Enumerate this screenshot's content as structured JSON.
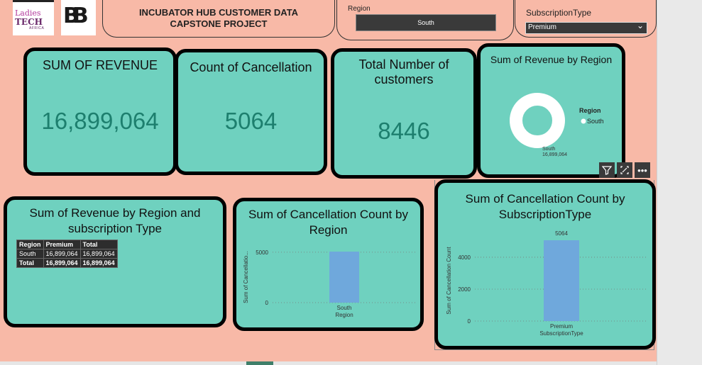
{
  "logos": {
    "ladies_line1": "Ladies",
    "ladies_line2": "TECH",
    "ladies_line3": "AFRICA",
    "brand_mark": "BB"
  },
  "header": {
    "title": "INCUBATOR HUB CUSTOMER DATA CAPSTONE PROJECT"
  },
  "slicers": {
    "region": {
      "label": "Region",
      "value": "South"
    },
    "subscription": {
      "label": "SubscriptionType",
      "value": "Premium"
    }
  },
  "kpis": {
    "revenue": {
      "title": "SUM OF REVENUE",
      "value": "16,899,064"
    },
    "cancellation": {
      "title": "Count of Cancellation",
      "value": "5064"
    },
    "customers": {
      "title": "Total Number of customers",
      "value": "8446"
    }
  },
  "donut": {
    "title": "Sum of Revenue by Region",
    "legend_title": "Region",
    "legend_item": "South",
    "label_region": "South",
    "label_value": "16,899,064",
    "color": "#ffffff"
  },
  "table_visual": {
    "title": "Sum of Revenue by Region and subscription Type",
    "headers": [
      "Region",
      "Premium",
      "Total"
    ],
    "rows": [
      [
        "South",
        "16,899,064",
        "16,899,064"
      ],
      [
        "Total",
        "16,899,064",
        "16,899,064"
      ]
    ]
  },
  "chart_data": [
    {
      "type": "bar",
      "title": "Sum of Cancellation Count by Region",
      "categories": [
        "South"
      ],
      "values": [
        5064
      ],
      "xlabel": "Region",
      "ylabel": "Sum of Cancellatio...",
      "yticks": [
        0,
        5000
      ],
      "ylim": [
        0,
        5064
      ],
      "color": "#6fa8dc",
      "grid": true
    },
    {
      "type": "bar",
      "title": "Sum of Cancellation Count by SubscriptionType",
      "categories": [
        "Premium"
      ],
      "values": [
        5064
      ],
      "data_labels": [
        "5064"
      ],
      "xlabel": "SubscriptionType",
      "ylabel": "Sum of Cancellation Count",
      "yticks": [
        0,
        2000,
        4000
      ],
      "ylim": [
        0,
        5064
      ],
      "color": "#6fa8dc",
      "grid": true
    }
  ],
  "visual_header_icons": [
    "filter-icon",
    "focus-mode-icon",
    "more-options-icon"
  ]
}
